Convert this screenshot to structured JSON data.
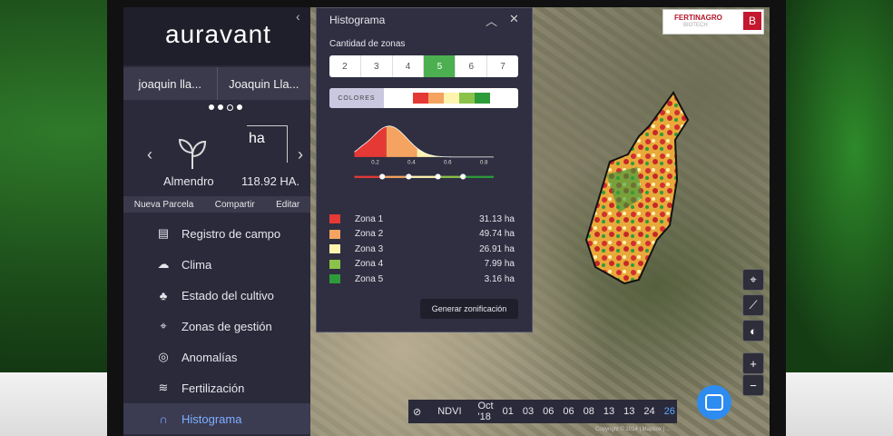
{
  "app": {
    "logo": "auravant"
  },
  "users": [
    "joaquin lla...",
    "Joaquin Lla..."
  ],
  "crop": {
    "name": "Almendro",
    "area_unit": "ha",
    "area_value": "118.92 HA."
  },
  "actions": [
    "Nueva Parcela",
    "Compartir",
    "Editar"
  ],
  "menu": [
    {
      "label": "Registro de campo",
      "icon": "field-log-icon"
    },
    {
      "label": "Clima",
      "icon": "cloud-icon"
    },
    {
      "label": "Estado del cultivo",
      "icon": "crop-state-icon"
    },
    {
      "label": "Zonas de gestión",
      "icon": "location-pin-icon"
    },
    {
      "label": "Anomalías",
      "icon": "anomaly-icon"
    },
    {
      "label": "Fertilización",
      "icon": "fertilization-icon"
    },
    {
      "label": "Histograma",
      "icon": "histogram-icon",
      "active": true
    }
  ],
  "panel": {
    "title": "Histograma",
    "zones_label": "Cantidad de zonas",
    "zone_options": [
      "2",
      "3",
      "4",
      "5",
      "6",
      "7"
    ],
    "selected_zones": "5",
    "colors_label": "COLORES",
    "swatch_colors": [
      "#e53935",
      "#f4a460",
      "#fff3b0",
      "#8bc34a",
      "#2e9b3a"
    ],
    "generate_label": "Generar zonificación"
  },
  "chart_data": {
    "type": "area",
    "x_ticks": [
      "0.2",
      "0.4",
      "0.6",
      "0.8"
    ],
    "thresholds": [
      "0.25",
      "0.39",
      "0.54",
      "0.68"
    ],
    "zones": [
      {
        "name": "Zona 1",
        "value": "31.13 ha",
        "color": "#e53935"
      },
      {
        "name": "Zona 2",
        "value": "49.74 ha",
        "color": "#f4a460"
      },
      {
        "name": "Zona 3",
        "value": "26.91 ha",
        "color": "#fff3b0"
      },
      {
        "name": "Zona 4",
        "value": "7.99 ha",
        "color": "#8bc34a"
      },
      {
        "name": "Zona 5",
        "value": "3.16 ha",
        "color": "#2e9b3a"
      }
    ]
  },
  "brand": {
    "name": "FERTINAGRO",
    "sub": "BIOTECH",
    "badge": "B"
  },
  "timeline": {
    "layer": "NDVI",
    "month": "Oct '18",
    "days": [
      "01",
      "03",
      "06",
      "06",
      "08",
      "13",
      "13",
      "24",
      "26"
    ],
    "active_day": "26"
  },
  "copyright": "Copyright © 2014 | Mapbox | ...",
  "tools": [
    "location-pin-icon",
    "ruler-icon",
    "contrast-icon",
    "zoom-in-icon",
    "zoom-out-icon"
  ],
  "tool_labels": {
    "zoom_in": "+",
    "zoom_out": "−"
  }
}
